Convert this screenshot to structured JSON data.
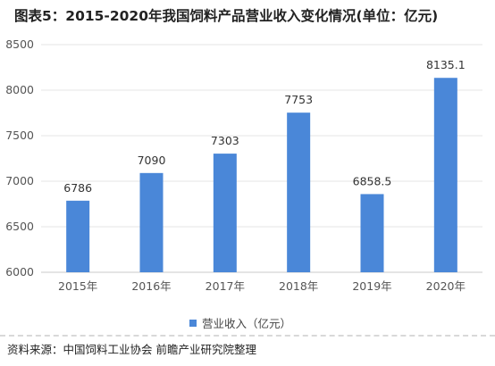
{
  "title": "图表5：2015-2020年我国饲料产品营业收入变化情况(单位：亿元)",
  "source": "资料来源：中国饲料工业协会 前瞻产业研究院整理",
  "colors": {
    "bar": "#4a87d8",
    "grid": "#e4e4e4",
    "axis": "#c8c8c8"
  },
  "chart_data": {
    "type": "bar",
    "categories": [
      "2015年",
      "2016年",
      "2017年",
      "2018年",
      "2019年",
      "2020年"
    ],
    "series": [
      {
        "name": "营业收入（亿元）",
        "values": [
          6786,
          7090,
          7303,
          7753,
          6858.5,
          8135.1
        ]
      }
    ],
    "value_labels": [
      "6786",
      "7090",
      "7303",
      "7753",
      "6858.5",
      "8135.1"
    ],
    "ylim": [
      6000,
      8500
    ],
    "yticks": [
      6000,
      6500,
      7000,
      7500,
      8000,
      8500
    ],
    "grid": true,
    "legend": "bottom-center"
  }
}
